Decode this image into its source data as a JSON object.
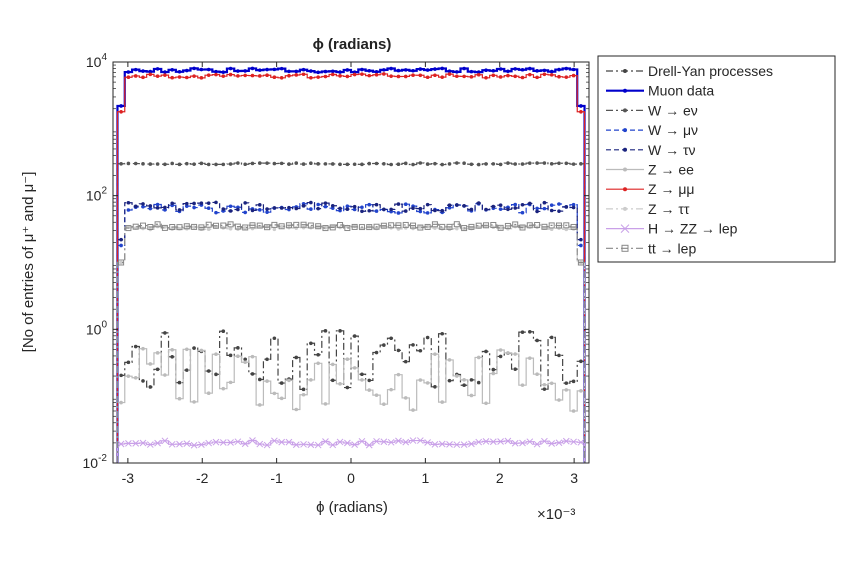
{
  "chart_data": {
    "type": "line",
    "title": "ϕ (radians)",
    "xlabel": "ϕ (radians)",
    "ylabel": "[No of entries of μ⁺ and μ⁻]",
    "x_multiplier": "×10⁻³",
    "xlim": [
      -3.2,
      3.2
    ],
    "ylim": [
      0.01,
      10000
    ],
    "yscale": "log",
    "x_ticks": [
      -3,
      -2,
      -1,
      0,
      1,
      2,
      3
    ],
    "x_tick_labels": [
      "-3",
      "-2",
      "-1",
      "0",
      "1",
      "2",
      "3"
    ],
    "y_ticks": [
      0.01,
      1,
      100,
      10000
    ],
    "y_tick_labels": [
      {
        "base": "10",
        "exp": "-2"
      },
      {
        "base": "10",
        "exp": "0"
      },
      {
        "base": "10",
        "exp": "2"
      },
      {
        "base": "10",
        "exp": "4"
      }
    ],
    "grid": false,
    "legend_position": "outside-right",
    "series": [
      {
        "name": "Drell-Yan processes",
        "color": "#444444",
        "style": "dashdot",
        "marker": "dot",
        "level": 0.35,
        "jitter": 0.75,
        "edge_level": null
      },
      {
        "name": "Muon data",
        "color": "#0000cc",
        "style": "solid",
        "marker": "dot",
        "level": 7500,
        "jitter": 0.05,
        "edge_level": 2200
      },
      {
        "name": "W → eν",
        "color": "#555555",
        "style": "dashdot",
        "marker": "dot",
        "level": 300,
        "jitter": 0.02,
        "edge_level": 300
      },
      {
        "name": "W → μν",
        "color": "#2244cc",
        "style": "dashed",
        "marker": "dot",
        "level": 65,
        "jitter": 0.12,
        "edge_level": 18
      },
      {
        "name": "W → τν",
        "color": "#1a237e",
        "style": "dashed",
        "marker": "dot",
        "level": 68,
        "jitter": 0.12,
        "edge_level": 22
      },
      {
        "name": "Z → ee",
        "color": "#bbbbbb",
        "style": "solid",
        "marker": "dot",
        "level": 0.18,
        "jitter": 0.8,
        "edge_level": null
      },
      {
        "name": "Z → μμ",
        "color": "#dd2222",
        "style": "solid",
        "marker": "dot",
        "level": 6200,
        "jitter": 0.05,
        "edge_level": 1800
      },
      {
        "name": "Z → ττ",
        "color": "#cccccc",
        "style": "dashdot",
        "marker": "dot",
        "level": 33,
        "jitter": 0.04,
        "edge_level": 10
      },
      {
        "name": "H → ZZ → lep",
        "color": "#c9a0e8",
        "style": "solid",
        "marker": "x",
        "level": 0.02,
        "jitter": 0.06,
        "edge_level": null
      },
      {
        "name": "tt → lep",
        "color": "#888888",
        "style": "dashdot",
        "marker": "square",
        "level": 35,
        "jitter": 0.05,
        "edge_level": 10
      }
    ]
  }
}
